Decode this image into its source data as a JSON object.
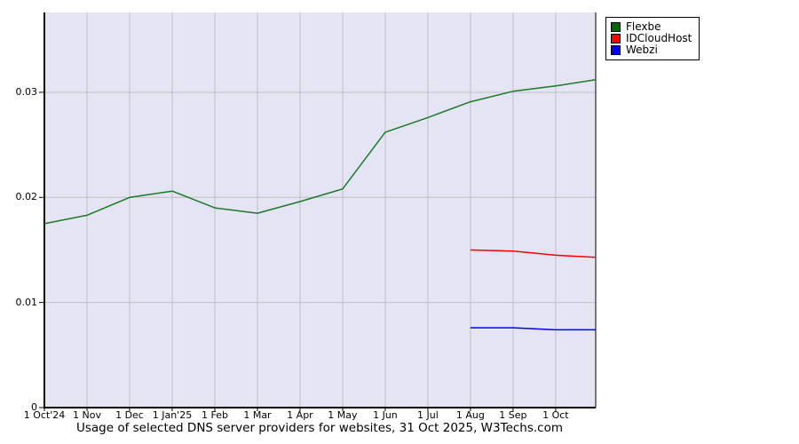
{
  "chart_data": {
    "type": "line",
    "title": "Usage of selected DNS server providers for websites, 31 Oct 2025, W3Techs.com",
    "x_tick_labels": [
      "1 Oct'24",
      "1 Nov",
      "1 Dec",
      "1 Jan'25",
      "1 Feb",
      "1 Mar",
      "1 Apr",
      "1 May",
      "1 Jun",
      "1 Jul",
      "1 Aug",
      "1 Sep",
      "1 Oct"
    ],
    "x_domain_max": 12.94,
    "y_ticks": [
      {
        "value": 0,
        "label": "0"
      },
      {
        "value": 0.01,
        "label": "0.01"
      },
      {
        "value": 0.02,
        "label": "0.02"
      },
      {
        "value": 0.03,
        "label": "0.03"
      }
    ],
    "ylim": [
      0,
      0.0376
    ],
    "grid": true,
    "legend_position": "top-right-outside",
    "plot_bg_color": "#e4e4f4",
    "grid_color": "#c0c0c0",
    "axis_color": "#000000",
    "series": [
      {
        "name": "Flexbe",
        "color": "#1b7a24",
        "swatch_color": "#006600",
        "x": [
          0,
          1,
          2,
          3,
          4,
          5,
          6,
          7,
          8,
          9,
          10,
          11,
          12,
          12.94
        ],
        "values": [
          0.0175,
          0.0183,
          0.02,
          0.0206,
          0.019,
          0.0185,
          0.0196,
          0.0208,
          0.0262,
          0.0276,
          0.0291,
          0.0301,
          0.0306,
          0.0312
        ]
      },
      {
        "name": "IDCloudHost",
        "color": "#ff0000",
        "swatch_color": "#ff0000",
        "x": [
          10,
          11,
          12,
          12.94
        ],
        "values": [
          0.015,
          0.0149,
          0.0145,
          0.0143
        ]
      },
      {
        "name": "Webzi",
        "color": "#0000ff",
        "swatch_color": "#0000ff",
        "x": [
          10,
          11,
          12,
          12.94
        ],
        "values": [
          0.0076,
          0.0076,
          0.0074,
          0.0074
        ]
      }
    ]
  }
}
